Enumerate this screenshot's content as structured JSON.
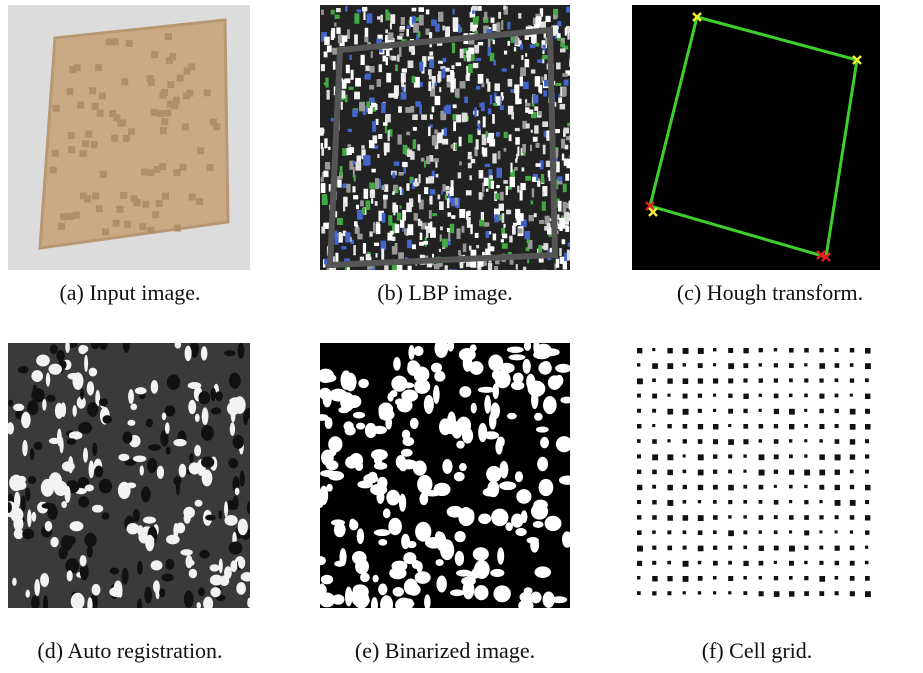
{
  "subfigures": [
    {
      "caption": "(a) Input image."
    },
    {
      "caption": "(b) LBP image."
    },
    {
      "caption": "(c) Hough transform."
    },
    {
      "caption": "(d) Auto registration."
    },
    {
      "caption": "(e) Binarized image."
    },
    {
      "caption": "(f) Cell grid."
    }
  ]
}
